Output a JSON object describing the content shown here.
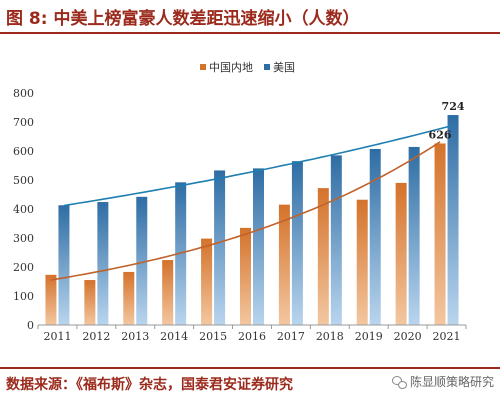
{
  "header": {
    "title": "图 8: 中美上榜富豪人数差距迅速缩小（人数）"
  },
  "footer": {
    "source": "数据来源：《福布斯》杂志，国泰君安证券研究",
    "watermark": "陈显顺策略研究",
    "watermark_icon": "wechat-icon"
  },
  "chart_data": {
    "type": "bar",
    "title": "",
    "xlabel": "",
    "ylabel": "",
    "categories": [
      "2011",
      "2012",
      "2013",
      "2014",
      "2015",
      "2016",
      "2017",
      "2018",
      "2019",
      "2020",
      "2021"
    ],
    "series": [
      {
        "name": "中国内地",
        "color": "#d4722b",
        "values": [
          173,
          155,
          183,
          224,
          298,
          335,
          415,
          472,
          432,
          490,
          626
        ]
      },
      {
        "name": "美国",
        "color": "#2e6da4",
        "values": [
          413,
          424,
          442,
          492,
          533,
          540,
          565,
          585,
          607,
          614,
          724
        ]
      }
    ],
    "trendlines": [
      {
        "series": "中国内地",
        "color": "#c0622a",
        "type": "exponential"
      },
      {
        "series": "美国",
        "color": "#1f7fb0",
        "type": "exponential"
      }
    ],
    "data_labels": [
      {
        "series": "中国内地",
        "category": "2021",
        "text": "626"
      },
      {
        "series": "美国",
        "category": "2021",
        "text": "724"
      }
    ],
    "yticks": [
      0,
      100,
      200,
      300,
      400,
      500,
      600,
      700,
      800
    ],
    "ylim": [
      0,
      800
    ],
    "legend": "top-center",
    "grid": false
  }
}
